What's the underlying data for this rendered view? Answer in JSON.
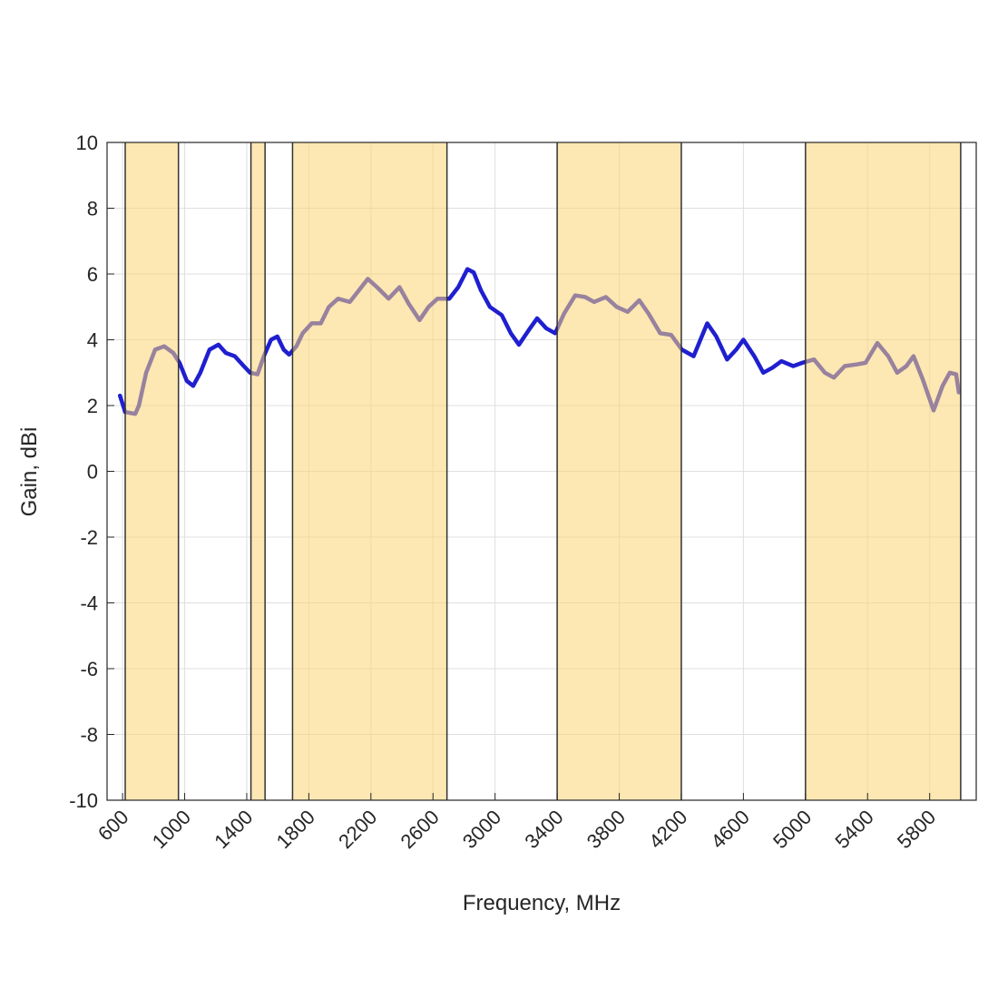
{
  "chart_data": {
    "type": "line",
    "xlabel": "Frequency, MHz",
    "ylabel": "Gain, dBi",
    "xlim": [
      500,
      6100
    ],
    "ylim": [
      -10,
      10
    ],
    "xticks": [
      600,
      1000,
      1400,
      1800,
      2200,
      2600,
      3000,
      3400,
      3800,
      4200,
      4600,
      5000,
      5400,
      5800
    ],
    "yticks": [
      -10,
      -8,
      -6,
      -4,
      -2,
      0,
      2,
      4,
      6,
      8,
      10
    ],
    "grid": true,
    "bands": [
      [
        617,
        960
      ],
      [
        1427,
        1518
      ],
      [
        1695,
        2690
      ],
      [
        3400,
        4200
      ],
      [
        5000,
        6000
      ]
    ],
    "band_color": "#fcd375",
    "x": [
      583,
      617,
      682,
      705,
      752,
      810,
      868,
      927,
      967,
      1014,
      1055,
      1101,
      1160,
      1218,
      1265,
      1323,
      1381,
      1422,
      1469,
      1510,
      1556,
      1597,
      1638,
      1673,
      1720,
      1760,
      1819,
      1877,
      1929,
      1988,
      2064,
      2122,
      2180,
      2239,
      2314,
      2384,
      2443,
      2513,
      2571,
      2629,
      2705,
      2763,
      2822,
      2862,
      2909,
      2967,
      3043,
      3101,
      3154,
      3218,
      3271,
      3329,
      3387,
      3445,
      3516,
      3580,
      3638,
      3714,
      3784,
      3854,
      3929,
      3988,
      4064,
      4134,
      4204,
      4279,
      4367,
      4425,
      4495,
      4553,
      4600,
      4670,
      4728,
      4787,
      4845,
      4921,
      4979,
      5055,
      5125,
      5183,
      5253,
      5329,
      5387,
      5463,
      5533,
      5591,
      5650,
      5696,
      5755,
      5825,
      5883,
      5930,
      5971,
      5988
    ],
    "series": [
      {
        "color": "#1f1fd0",
        "values": [
          2.3,
          1.8,
          1.75,
          2.0,
          3.0,
          3.7,
          3.8,
          3.6,
          3.3,
          2.75,
          2.6,
          3.0,
          3.7,
          3.85,
          3.6,
          3.5,
          3.2,
          3.0,
          2.95,
          3.5,
          4.0,
          4.1,
          3.7,
          3.55,
          3.8,
          4.2,
          4.5,
          4.5,
          5.0,
          5.25,
          5.15,
          5.5,
          5.85,
          5.6,
          5.25,
          5.6,
          5.1,
          4.6,
          5.0,
          5.25,
          5.25,
          5.6,
          6.15,
          6.05,
          5.5,
          5.0,
          4.75,
          4.2,
          3.85,
          4.3,
          4.65,
          4.35,
          4.2,
          4.8,
          5.35,
          5.3,
          5.15,
          5.3,
          5.0,
          4.85,
          5.2,
          4.8,
          4.2,
          4.15,
          3.7,
          3.5,
          4.5,
          4.1,
          3.4,
          3.7,
          4.0,
          3.5,
          3.0,
          3.15,
          3.35,
          3.2,
          3.3,
          3.4,
          3.0,
          2.85,
          3.2,
          3.25,
          3.3,
          3.9,
          3.5,
          3.0,
          3.2,
          3.5,
          2.8,
          1.85,
          2.6,
          3.0,
          2.95,
          2.4
        ]
      }
    ]
  }
}
